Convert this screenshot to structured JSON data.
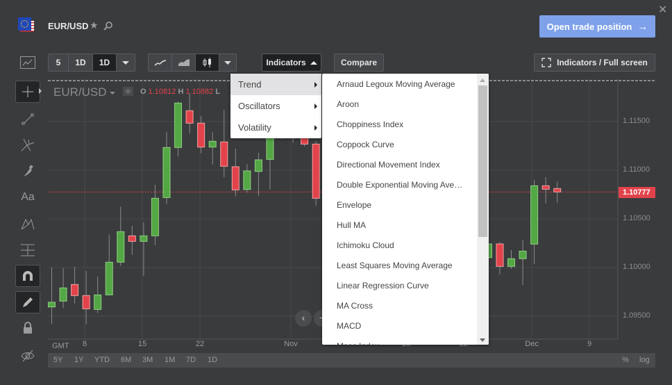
{
  "header": {
    "symbol": "EUR/USD",
    "flag_icon": "eu-us-flag-icon",
    "open_trade_label": "Open trade position",
    "accent": "#7ea1ea"
  },
  "toolbar": {
    "intervals": [
      "5",
      "1D",
      "1D"
    ],
    "active_interval_index": 2,
    "chart_types": [
      "line-chart-icon",
      "area-chart-icon",
      "candlestick-icon"
    ],
    "active_chart_type": "candlestick",
    "indicators_label": "Indicators",
    "compare_label": "Compare",
    "fullscreen_label": "Indicators / Full screen"
  },
  "legend": {
    "symbol": "EUR/USD",
    "o_label": "O",
    "o_value": "1.10812",
    "h_label": "H",
    "h_value": "1.10882",
    "l_label": "L"
  },
  "indicator_menu": {
    "categories": [
      {
        "label": "Trend",
        "highlighted": true
      },
      {
        "label": "Oscillators"
      },
      {
        "label": "Volatility"
      }
    ],
    "trend_items": [
      "Arnaud Legoux Moving Average",
      "Aroon",
      "Choppiness Index",
      "Coppock Curve",
      "Directional Movement Index",
      "Double Exponential Moving Ave…",
      "Envelope",
      "Hull MA",
      "Ichimoku Cloud",
      "Least Squares Moving Average",
      "Linear Regression Curve",
      "MA Cross",
      "MACD",
      "Mass Index"
    ]
  },
  "left_tools": [
    "crosshair",
    "trend-line",
    "pitchfork",
    "brush",
    "text",
    "pattern",
    "measure",
    "magnet",
    "drawing-mode",
    "lock",
    "hide"
  ],
  "range_bar": {
    "ranges": [
      "5Y",
      "1Y",
      "YTD",
      "6M",
      "3M",
      "1M",
      "7D",
      "1D"
    ],
    "percent_label": "%",
    "log_label": "log"
  },
  "chart_data": {
    "type": "candlestick",
    "timezone_label": "GMT",
    "x_ticks": [
      "8",
      "15",
      "22",
      "Nov",
      "15",
      "22",
      "Dec",
      "9"
    ],
    "y_ticks": [
      "1.11500",
      "1.11000",
      "1.10500",
      "1.10000",
      "1.09500"
    ],
    "ylim": [
      1.0918,
      1.1195
    ],
    "last_price": "1.10777",
    "colors": {
      "up": "#53a744",
      "down": "#e2434a",
      "last_price": "#e2434a"
    },
    "candles": [
      {
        "date": "Oct 3",
        "o": 1.09595,
        "h": 1.1,
        "l": 1.09421,
        "c": 1.09643
      },
      {
        "date": "Oct 4",
        "o": 1.09655,
        "h": 1.09993,
        "l": 1.09584,
        "c": 1.09791
      },
      {
        "date": "Oct 7",
        "o": 1.09826,
        "h": 1.10007,
        "l": 1.09631,
        "c": 1.09712
      },
      {
        "date": "Oct 8",
        "o": 1.09712,
        "h": 1.09964,
        "l": 1.09416,
        "c": 1.09576
      },
      {
        "date": "Oct 9",
        "o": 1.09569,
        "h": 1.09907,
        "l": 1.09531,
        "c": 1.09719
      },
      {
        "date": "Oct 10",
        "o": 1.09719,
        "h": 1.10341,
        "l": 1.09719,
        "c": 1.10055
      },
      {
        "date": "Oct 11",
        "o": 1.10055,
        "h": 1.10626,
        "l": 1.10016,
        "c": 1.10369
      },
      {
        "date": "Oct 14",
        "o": 1.10326,
        "h": 1.10429,
        "l": 1.10131,
        "c": 1.10269
      },
      {
        "date": "Oct 15",
        "o": 1.10269,
        "h": 1.10464,
        "l": 1.09916,
        "c": 1.10326
      },
      {
        "date": "Oct 16",
        "o": 1.10326,
        "h": 1.1085,
        "l": 1.10231,
        "c": 1.10712
      },
      {
        "date": "Oct 17",
        "o": 1.10719,
        "h": 1.11393,
        "l": 1.10655,
        "c": 1.11234
      },
      {
        "date": "Oct 18",
        "o": 1.11234,
        "h": 1.11707,
        "l": 1.11143,
        "c": 1.11691
      },
      {
        "date": "Oct 21",
        "o": 1.11612,
        "h": 1.11786,
        "l": 1.11381,
        "c": 1.11484
      },
      {
        "date": "Oct 22",
        "o": 1.11484,
        "h": 1.11555,
        "l": 1.11174,
        "c": 1.11238
      },
      {
        "date": "Oct 23",
        "o": 1.11238,
        "h": 1.11393,
        "l": 1.11059,
        "c": 1.11298
      },
      {
        "date": "Oct 24",
        "o": 1.11291,
        "h": 1.11619,
        "l": 1.10929,
        "c": 1.11041
      },
      {
        "date": "Oct 25",
        "o": 1.11036,
        "h": 1.11221,
        "l": 1.10731,
        "c": 1.10798
      },
      {
        "date": "Oct 28",
        "o": 1.10802,
        "h": 1.11064,
        "l": 1.10769,
        "c": 1.10993
      },
      {
        "date": "Oct 29",
        "o": 1.10988,
        "h": 1.11179,
        "l": 1.10738,
        "c": 1.11107
      },
      {
        "date": "Oct 30",
        "o": 1.11112,
        "h": 1.115,
        "l": 1.10802,
        "c": 1.114
      },
      {
        "date": "Oct 31",
        "o": 1.1135,
        "h": 1.116,
        "l": 1.11321,
        "c": 1.115
      },
      {
        "date": "Nov 1",
        "o": 1.1138,
        "h": 1.1155,
        "l": 1.11283,
        "c": 1.1148
      },
      {
        "date": "Nov 4",
        "o": 1.115,
        "h": 1.1155,
        "l": 1.11245,
        "c": 1.11269
      },
      {
        "date": "Nov 5",
        "o": 1.11269,
        "h": 1.113,
        "l": 1.10636,
        "c": 1.10712
      },
      {
        "date": "Nov 26",
        "o": 1.10102,
        "h": 1.103,
        "l": 1.1005,
        "c": 1.10243
      },
      {
        "date": "Nov 27",
        "o": 1.10243,
        "h": 1.10262,
        "l": 1.09929,
        "c": 1.10012
      },
      {
        "date": "Nov 28",
        "o": 1.10012,
        "h": 1.10179,
        "l": 1.09988,
        "c": 1.10091
      },
      {
        "date": "Nov 29",
        "o": 1.10091,
        "h": 1.10286,
        "l": 1.09821,
        "c": 1.10169
      },
      {
        "date": "Dec 2",
        "o": 1.10241,
        "h": 1.109,
        "l": 1.10036,
        "c": 1.10841
      },
      {
        "date": "Dec 3",
        "o": 1.10841,
        "h": 1.10929,
        "l": 1.10659,
        "c": 1.10805
      },
      {
        "date": "Dec 4",
        "o": 1.10812,
        "h": 1.10882,
        "l": 1.10667,
        "c": 1.10777
      }
    ]
  }
}
